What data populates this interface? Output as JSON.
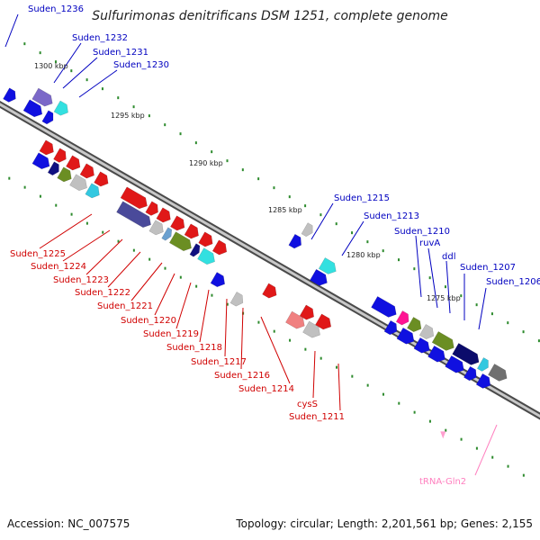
{
  "title": "Sulfurimonas denitrificans DSM 1251, complete genome",
  "footer": {
    "accession": "Accession: NC_007575",
    "topology": "Topology: circular; Length: 2,201,561 bp; Genes: 2,155"
  },
  "colors": {
    "backbone": "#808080",
    "tick": "#2e8b2e",
    "top_label": "#0000c0",
    "bottom_label": "#d00000",
    "trna_label": "#ff7fbf"
  },
  "scale_ticks": [
    {
      "label": "1300 kbp"
    },
    {
      "label": "1295 kbp"
    },
    {
      "label": "1290 kbp"
    },
    {
      "label": "1285 kbp"
    },
    {
      "label": "1280 kbp"
    },
    {
      "label": "1275 kbp"
    }
  ],
  "top_gene_labels": [
    {
      "text": "Suden_1236"
    },
    {
      "text": "Suden_1232"
    },
    {
      "text": "Suden_1231"
    },
    {
      "text": "Suden_1230"
    },
    {
      "text": "Suden_1215"
    },
    {
      "text": "Suden_1213"
    },
    {
      "text": "Suden_1210"
    },
    {
      "text": "ruvA"
    },
    {
      "text": "ddl"
    },
    {
      "text": "Suden_1207"
    },
    {
      "text": "Suden_1206"
    }
  ],
  "bottom_gene_labels": [
    {
      "text": "Suden_1225"
    },
    {
      "text": "Suden_1224"
    },
    {
      "text": "Suden_1223"
    },
    {
      "text": "Suden_1222"
    },
    {
      "text": "Suden_1221"
    },
    {
      "text": "Suden_1220"
    },
    {
      "text": "Suden_1219"
    },
    {
      "text": "Suden_1218"
    },
    {
      "text": "Suden_1217"
    },
    {
      "text": "Suden_1216"
    },
    {
      "text": "Suden_1214"
    },
    {
      "text": "cysS"
    },
    {
      "text": "Suden_1211"
    },
    {
      "text": "tRNA-Gln2"
    }
  ]
}
